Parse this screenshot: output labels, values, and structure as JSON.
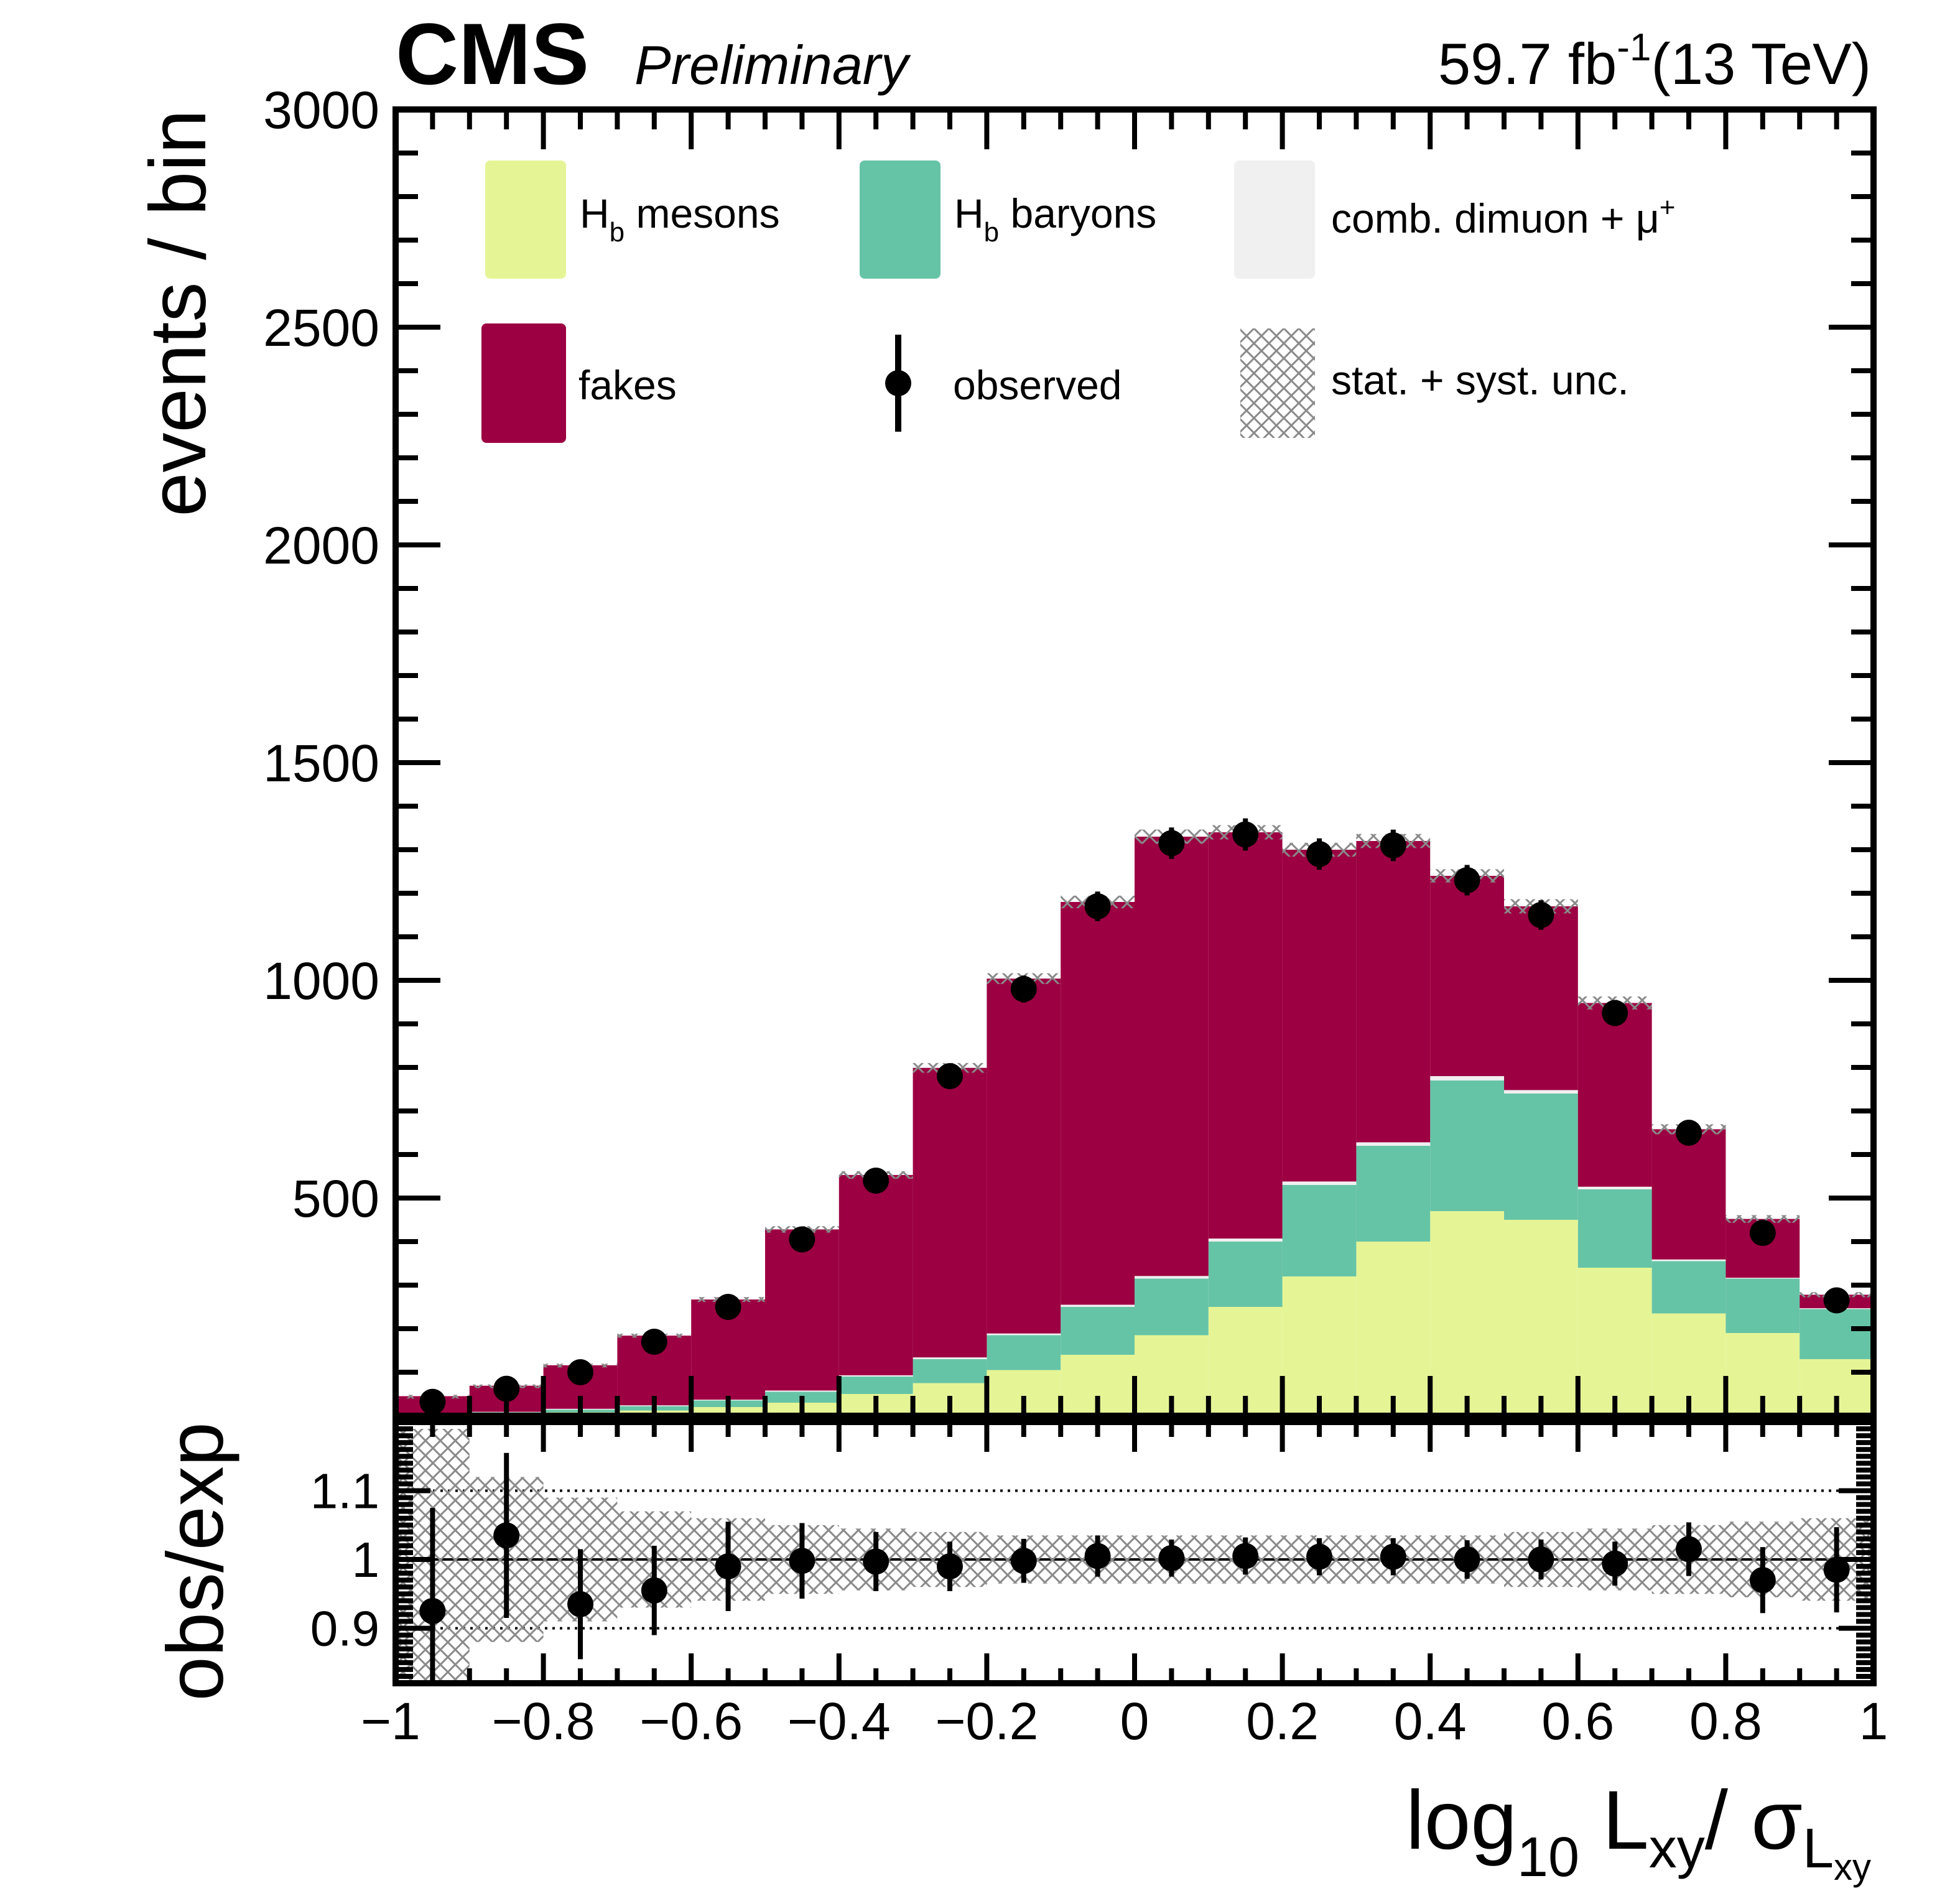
{
  "header": {
    "experiment": "CMS",
    "status": "Preliminary",
    "lumi_value": "59.7 fb",
    "lumi_exp": "-1",
    "energy": "(13 TeV)"
  },
  "legend": {
    "mesons": {
      "label_main": "H",
      "label_sub": "b",
      "label_rest": " mesons",
      "color": "#e5f596"
    },
    "baryons": {
      "label_main": "H",
      "label_sub": "b",
      "label_rest": " baryons",
      "color": "#66c4a6"
    },
    "comb": {
      "label": "comb. dimuon + μ",
      "label_sup": "+",
      "color": "#f0f0f0"
    },
    "fakes": {
      "label": "fakes",
      "color": "#9c0042"
    },
    "observed": {
      "label": "observed"
    },
    "unc": {
      "label": "stat. + syst. unc."
    }
  },
  "axes": {
    "ylabel_main": "events / bin",
    "ylabel_ratio": "obs/exp",
    "xlabel": {
      "base": "log",
      "sub": "10",
      "l": " L",
      "l_sub": "xy",
      "slash": "/  σ",
      "sigma_sub": "L",
      "sigma_subsub": "xy"
    }
  },
  "chart_data": {
    "type": "bar",
    "stacked": true,
    "bin_edges": [
      -1,
      -0.9,
      -0.8,
      -0.7,
      -0.6,
      -0.5,
      -0.4,
      -0.3,
      -0.2,
      -0.1,
      0,
      0.1,
      0.2,
      0.3,
      0.4,
      0.5,
      0.6,
      0.7,
      0.8,
      0.9,
      1
    ],
    "xlim": [
      -1,
      1
    ],
    "ylim": [
      0,
      3000
    ],
    "x_ticks": [
      "−1",
      "−0.8",
      "−0.6",
      "−0.4",
      "−0.2",
      "0",
      "0.2",
      "0.4",
      "0.6",
      "0.8",
      "1"
    ],
    "y_ticks": [
      "500",
      "1000",
      "1500",
      "2000",
      "2500",
      "3000"
    ],
    "series": [
      {
        "name": "H_b mesons",
        "color": "#e5f596",
        "values": [
          2,
          4,
          8,
          12,
          20,
          30,
          50,
          75,
          105,
          140,
          185,
          250,
          320,
          400,
          470,
          450,
          340,
          235,
          190,
          130
        ]
      },
      {
        "name": "H_b baryons",
        "color": "#66c4a6",
        "values": [
          2,
          4,
          6,
          10,
          15,
          25,
          40,
          55,
          80,
          110,
          130,
          150,
          210,
          220,
          300,
          290,
          180,
          120,
          125,
          115
        ]
      },
      {
        "name": "comb. dimuon + μ+",
        "color": "#f0f0f0",
        "values": [
          1,
          1,
          2,
          2,
          2,
          3,
          3,
          4,
          4,
          5,
          6,
          7,
          8,
          8,
          10,
          8,
          6,
          4,
          2,
          2
        ]
      },
      {
        "name": "fakes",
        "color": "#9c0042",
        "values": [
          40,
          60,
          100,
          160,
          230,
          370,
          460,
          665,
          815,
          925,
          1009,
          933,
          762,
          692,
          460,
          422,
          422,
          299,
          135,
          31
        ]
      }
    ],
    "observed": {
      "values": [
        32,
        62,
        100,
        170,
        250,
        405,
        540,
        780,
        980,
        1170,
        1315,
        1335,
        1290,
        1310,
        1230,
        1150,
        925,
        650,
        420,
        265
      ],
      "errors": [
        6,
        8,
        10,
        13,
        16,
        20,
        23,
        28,
        31,
        34,
        36,
        37,
        36,
        36,
        35,
        34,
        30,
        25,
        20,
        16
      ]
    },
    "ratio": {
      "ylabel": "obs/exp",
      "ylim": [
        0.82,
        1.2
      ],
      "y_ticks": [
        "0.9",
        "1",
        "1.1"
      ],
      "reference_lines": [
        0.9,
        1.0,
        1.1
      ],
      "values": [
        0.925,
        1.035,
        0.935,
        0.955,
        0.99,
        0.998,
        0.997,
        0.99,
        0.998,
        1.005,
        1.002,
        1.005,
        1.004,
        1.004,
        1.0,
        1.0,
        0.994,
        1.015,
        0.97,
        0.985
      ],
      "errors": [
        0.15,
        0.12,
        0.08,
        0.065,
        0.065,
        0.055,
        0.043,
        0.036,
        0.032,
        0.03,
        0.027,
        0.027,
        0.027,
        0.027,
        0.028,
        0.029,
        0.032,
        0.039,
        0.048,
        0.062
      ],
      "band": [
        0.19,
        0.12,
        0.09,
        0.07,
        0.06,
        0.05,
        0.045,
        0.04,
        0.035,
        0.035,
        0.035,
        0.035,
        0.035,
        0.035,
        0.035,
        0.04,
        0.045,
        0.05,
        0.055,
        0.06
      ]
    }
  }
}
